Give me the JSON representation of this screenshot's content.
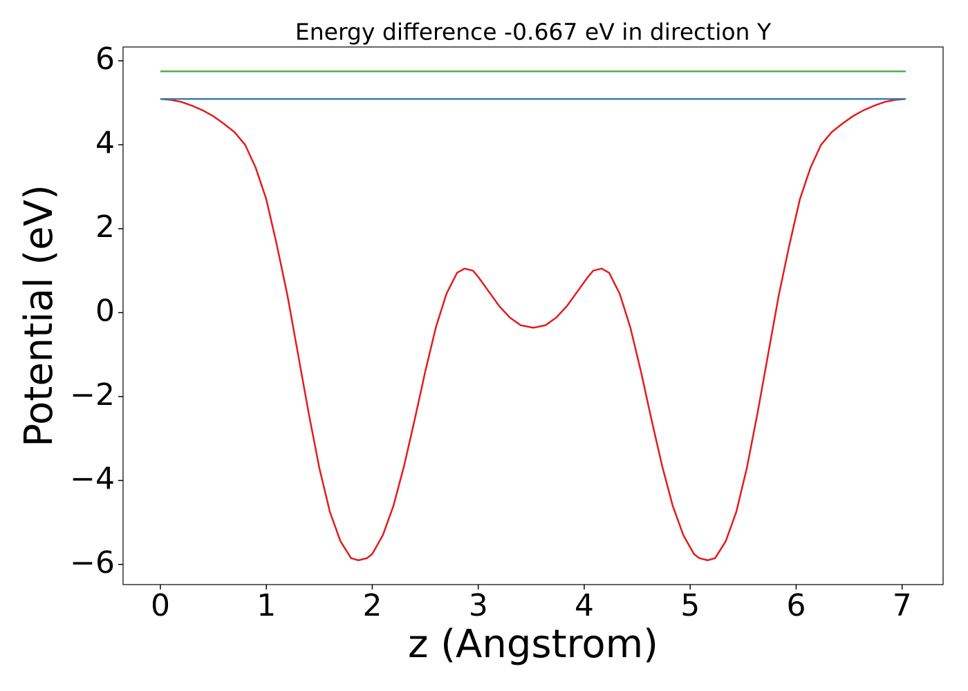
{
  "chart_data": {
    "type": "line",
    "title": "Energy difference -0.667 eV in direction Y",
    "xlabel": "z (Angstrom)",
    "ylabel": "Potential (eV)",
    "xlim": [
      -0.352,
      7.387
    ],
    "ylim": [
      -6.48,
      6.33
    ],
    "xticks": [
      0,
      1,
      2,
      3,
      4,
      5,
      6,
      7
    ],
    "yticks": [
      {
        "value": -6,
        "label": "−6"
      },
      {
        "value": -4,
        "label": "−4"
      },
      {
        "value": -2,
        "label": "−2"
      },
      0,
      2,
      4,
      6
    ],
    "grid": false,
    "series": [
      {
        "color": "#e41a1c",
        "x": [
          0,
          0.1,
          0.2,
          0.3,
          0.4,
          0.5,
          0.6,
          0.7,
          0.8,
          0.9,
          1.0,
          1.1,
          1.2,
          1.3,
          1.4,
          1.5,
          1.6,
          1.7,
          1.8,
          1.87,
          1.95,
          2.0,
          2.1,
          2.2,
          2.3,
          2.4,
          2.5,
          2.6,
          2.7,
          2.8,
          2.87,
          2.95,
          3.0,
          3.1,
          3.2,
          3.3,
          3.4,
          3.52,
          3.635,
          3.735,
          3.835,
          3.935,
          4.035,
          4.085,
          4.165,
          4.235,
          4.335,
          4.435,
          4.535,
          4.635,
          4.735,
          4.835,
          4.935,
          5.035,
          5.085,
          5.165,
          5.235,
          5.335,
          5.435,
          5.535,
          5.635,
          5.735,
          5.835,
          5.935,
          6.035,
          6.135,
          6.235,
          6.335,
          6.435,
          6.535,
          6.635,
          6.735,
          6.835,
          6.935,
          7.035
        ],
        "values": [
          5.09,
          5.07,
          5.02,
          4.93,
          4.82,
          4.68,
          4.5,
          4.3,
          4.0,
          3.45,
          2.7,
          1.6,
          0.4,
          -1.0,
          -2.4,
          -3.7,
          -4.75,
          -5.45,
          -5.85,
          -5.9,
          -5.85,
          -5.75,
          -5.3,
          -4.6,
          -3.65,
          -2.55,
          -1.4,
          -0.35,
          0.45,
          0.95,
          1.05,
          1.0,
          0.85,
          0.5,
          0.15,
          -0.12,
          -0.3,
          -0.36,
          -0.3,
          -0.12,
          0.15,
          0.5,
          0.85,
          1.0,
          1.05,
          0.95,
          0.45,
          -0.35,
          -1.4,
          -2.55,
          -3.65,
          -4.6,
          -5.3,
          -5.75,
          -5.85,
          -5.9,
          -5.85,
          -5.45,
          -4.75,
          -3.7,
          -2.4,
          -1.0,
          0.4,
          1.6,
          2.7,
          3.45,
          4.0,
          4.3,
          4.5,
          4.68,
          4.82,
          4.93,
          5.02,
          5.07,
          5.09
        ]
      },
      {
        "color": "#377eb8",
        "x": [
          0,
          7.035
        ],
        "values": [
          5.09,
          5.09
        ]
      },
      {
        "color": "#4daf4a",
        "x": [
          0,
          7.035
        ],
        "values": [
          5.75,
          5.75
        ]
      }
    ]
  }
}
